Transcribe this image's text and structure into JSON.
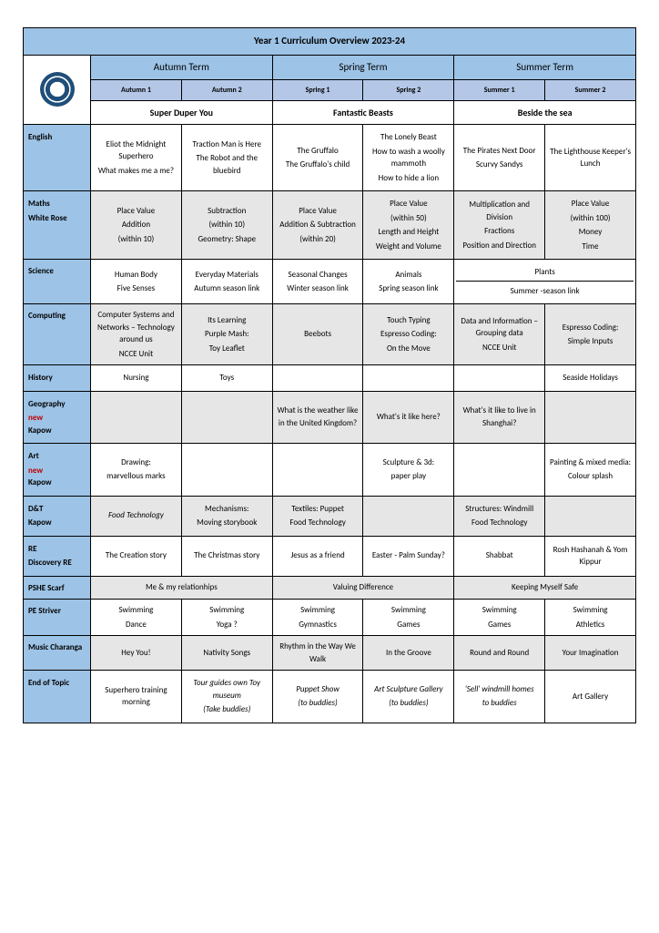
{
  "title": "Year 1 Curriculum Overview 2023-24",
  "terms": [
    "Autumn Term",
    "Spring Term",
    "Summer Term"
  ],
  "subterms": [
    "Autumn 1",
    "Autumn 2",
    "Spring 1",
    "Spring 2",
    "Summer 1",
    "Summer 2"
  ],
  "themes": [
    "Super Duper You",
    "Fantastic Beasts",
    "Beside the sea"
  ],
  "subjects": {
    "english": {
      "label": "English",
      "cells": [
        "Eliot the Midnight Superhero\nWhat makes me a me?",
        "Traction Man is Here\nThe Robot and the bluebird",
        "The Gruffalo\nThe Gruffalo's child",
        "The Lonely Beast\nHow to wash a woolly mammoth\nHow to hide a lion",
        "The Pirates Next Door\nScurvy Sandys",
        "The Lighthouse Keeper's Lunch"
      ]
    },
    "maths": {
      "label": "Maths",
      "sublabel": "White Rose",
      "cells": [
        "Place Value\nAddition\n(within 10)",
        "Subtraction\n(within 10)\nGeometry: Shape",
        "Place Value\nAddition & Subtraction\n(within 20)",
        "Place Value\n(within 50)\nLength and Height\nWeight and Volume",
        "Multiplication and Division\nFractions\nPosition and Direction",
        "Place Value\n(within 100)\nMoney\nTime"
      ]
    },
    "science": {
      "label": "Science",
      "cells": [
        "Human Body\nFive Senses",
        "Everyday Materials\nAutumn season link",
        "Seasonal Changes\nWinter season link",
        "Animals\nSpring season link",
        "Plants",
        "Summer -season link"
      ]
    },
    "computing": {
      "label": "Computing",
      "cells": [
        "Computer Systems and Networks – Technology around us\nNCCE Unit",
        "Its Learning\nPurple Mash:\nToy Leaflet",
        "Beebots",
        "Touch Typing\nEspresso Coding:\nOn the Move",
        "Data and Information – Grouping data\nNCCE Unit",
        "Espresso Coding:\nSimple Inputs"
      ]
    },
    "history": {
      "label": "History",
      "cells": [
        "Nursing",
        "Toys",
        "",
        "",
        "",
        "Seaside Holidays"
      ]
    },
    "geography": {
      "label": "Geography",
      "new": "new",
      "sub": "Kapow",
      "cells": [
        "",
        "",
        "What is the weather like in the United Kingdom?",
        "What's it like here?",
        "What's it like to live in Shanghai?",
        ""
      ]
    },
    "art": {
      "label": "Art",
      "new": "new",
      "sub": "Kapow",
      "cells": [
        "Drawing:\nmarvellous marks",
        "",
        "",
        "Sculpture & 3d:\npaper play",
        "",
        "Painting & mixed media:\nColour splash"
      ]
    },
    "dt": {
      "label": "D&T",
      "sub": "Kapow",
      "cells": [
        "Food Technology",
        "Mechanisms:\nMoving storybook",
        "Textiles: Puppet\nFood Technology",
        "",
        "Structures: Windmill\nFood Technology",
        ""
      ]
    },
    "re": {
      "label": "RE",
      "sub": "Discovery RE",
      "cells": [
        "The Creation story",
        "The Christmas story",
        "Jesus as a friend",
        "Easter - Palm Sunday?",
        "Shabbat",
        "Rosh Hashanah & Yom Kippur"
      ]
    },
    "pshe": {
      "label": "PSHE  Scarf",
      "cells": [
        "Me & my relationhips",
        "Valuing Difference",
        "Keeping Myself Safe"
      ]
    },
    "pe": {
      "label": " PE  Striver",
      "cells": [
        "Swimming\nDance",
        "Swimming\nYoga ?",
        "Swimming\nGymnastics",
        "Swimming\nGames",
        "Swimming\nGames",
        "Swimming\nAthletics"
      ]
    },
    "music": {
      "label": "Music Charanga",
      "cells": [
        "Hey You!",
        "Nativity Songs",
        "Rhythm in the Way We Walk",
        "In the Groove",
        "Round and Round",
        "Your Imagination"
      ]
    },
    "endtopic": {
      "label": "End of Topic",
      "cells": [
        "Superhero training morning",
        "Tour guides own Toy museum\n(Take buddies)",
        "Puppet Show\n(to buddies)",
        "Art Sculpture Gallery\n(to buddies)",
        "'Sell' windmill homes\nto buddies",
        "Art Gallery"
      ]
    }
  },
  "colors": {
    "header_bg": "#9dc3e6",
    "subheader_bg": "#b4c7e7",
    "grey_row": "#e7e6e6",
    "new_text": "#c00000",
    "border": "#000000"
  },
  "fonts": {
    "base_size_pt": 7,
    "title_pt": 9,
    "family": "Calibri"
  }
}
